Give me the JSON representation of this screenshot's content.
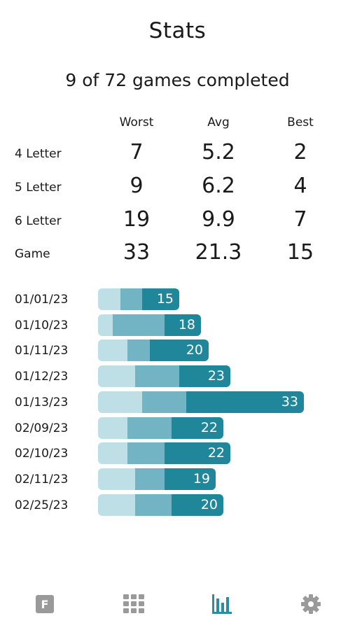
{
  "header": {
    "title": "Stats",
    "summary": "9 of 72 games completed"
  },
  "stats": {
    "columns": [
      "Worst",
      "Avg",
      "Best"
    ],
    "rows": [
      {
        "label": "4 Letter",
        "worst": "7",
        "avg": "5.2",
        "best": "2"
      },
      {
        "label": "5 Letter",
        "worst": "9",
        "avg": "6.2",
        "best": "4"
      },
      {
        "label": "6 Letter",
        "worst": "19",
        "avg": "9.9",
        "best": "7"
      },
      {
        "label": "Game",
        "worst": "33",
        "avg": "21.3",
        "best": "15"
      }
    ]
  },
  "history": {
    "max": 33,
    "rows": [
      {
        "date": "01/01/23",
        "segments": [
          3,
          3,
          5
        ],
        "total": "15"
      },
      {
        "date": "01/10/23",
        "segments": [
          2,
          7,
          5
        ],
        "total": "18"
      },
      {
        "date": "01/11/23",
        "segments": [
          4,
          3,
          8
        ],
        "total": "20"
      },
      {
        "date": "01/12/23",
        "segments": [
          5,
          6,
          7
        ],
        "total": "23"
      },
      {
        "date": "01/13/23",
        "segments": [
          6,
          6,
          16
        ],
        "total": "33"
      },
      {
        "date": "02/09/23",
        "segments": [
          4,
          6,
          7
        ],
        "total": "22"
      },
      {
        "date": "02/10/23",
        "segments": [
          4,
          5,
          9
        ],
        "total": "22"
      },
      {
        "date": "02/11/23",
        "segments": [
          5,
          4,
          7
        ],
        "total": "19"
      },
      {
        "date": "02/25/23",
        "segments": [
          5,
          5,
          7
        ],
        "total": "20"
      }
    ]
  },
  "nav": {
    "items": [
      {
        "icon": "f-logo-icon",
        "letter": "F"
      },
      {
        "icon": "grid-icon"
      },
      {
        "icon": "stats-icon",
        "active": true
      },
      {
        "icon": "gear-icon"
      }
    ]
  },
  "colors": {
    "segment_light": "#bfdfe7",
    "segment_mid": "#72b4c3",
    "segment_dark": "#20879a",
    "nav_inactive": "#9a9a9a",
    "nav_active": "#2a8ea2"
  }
}
